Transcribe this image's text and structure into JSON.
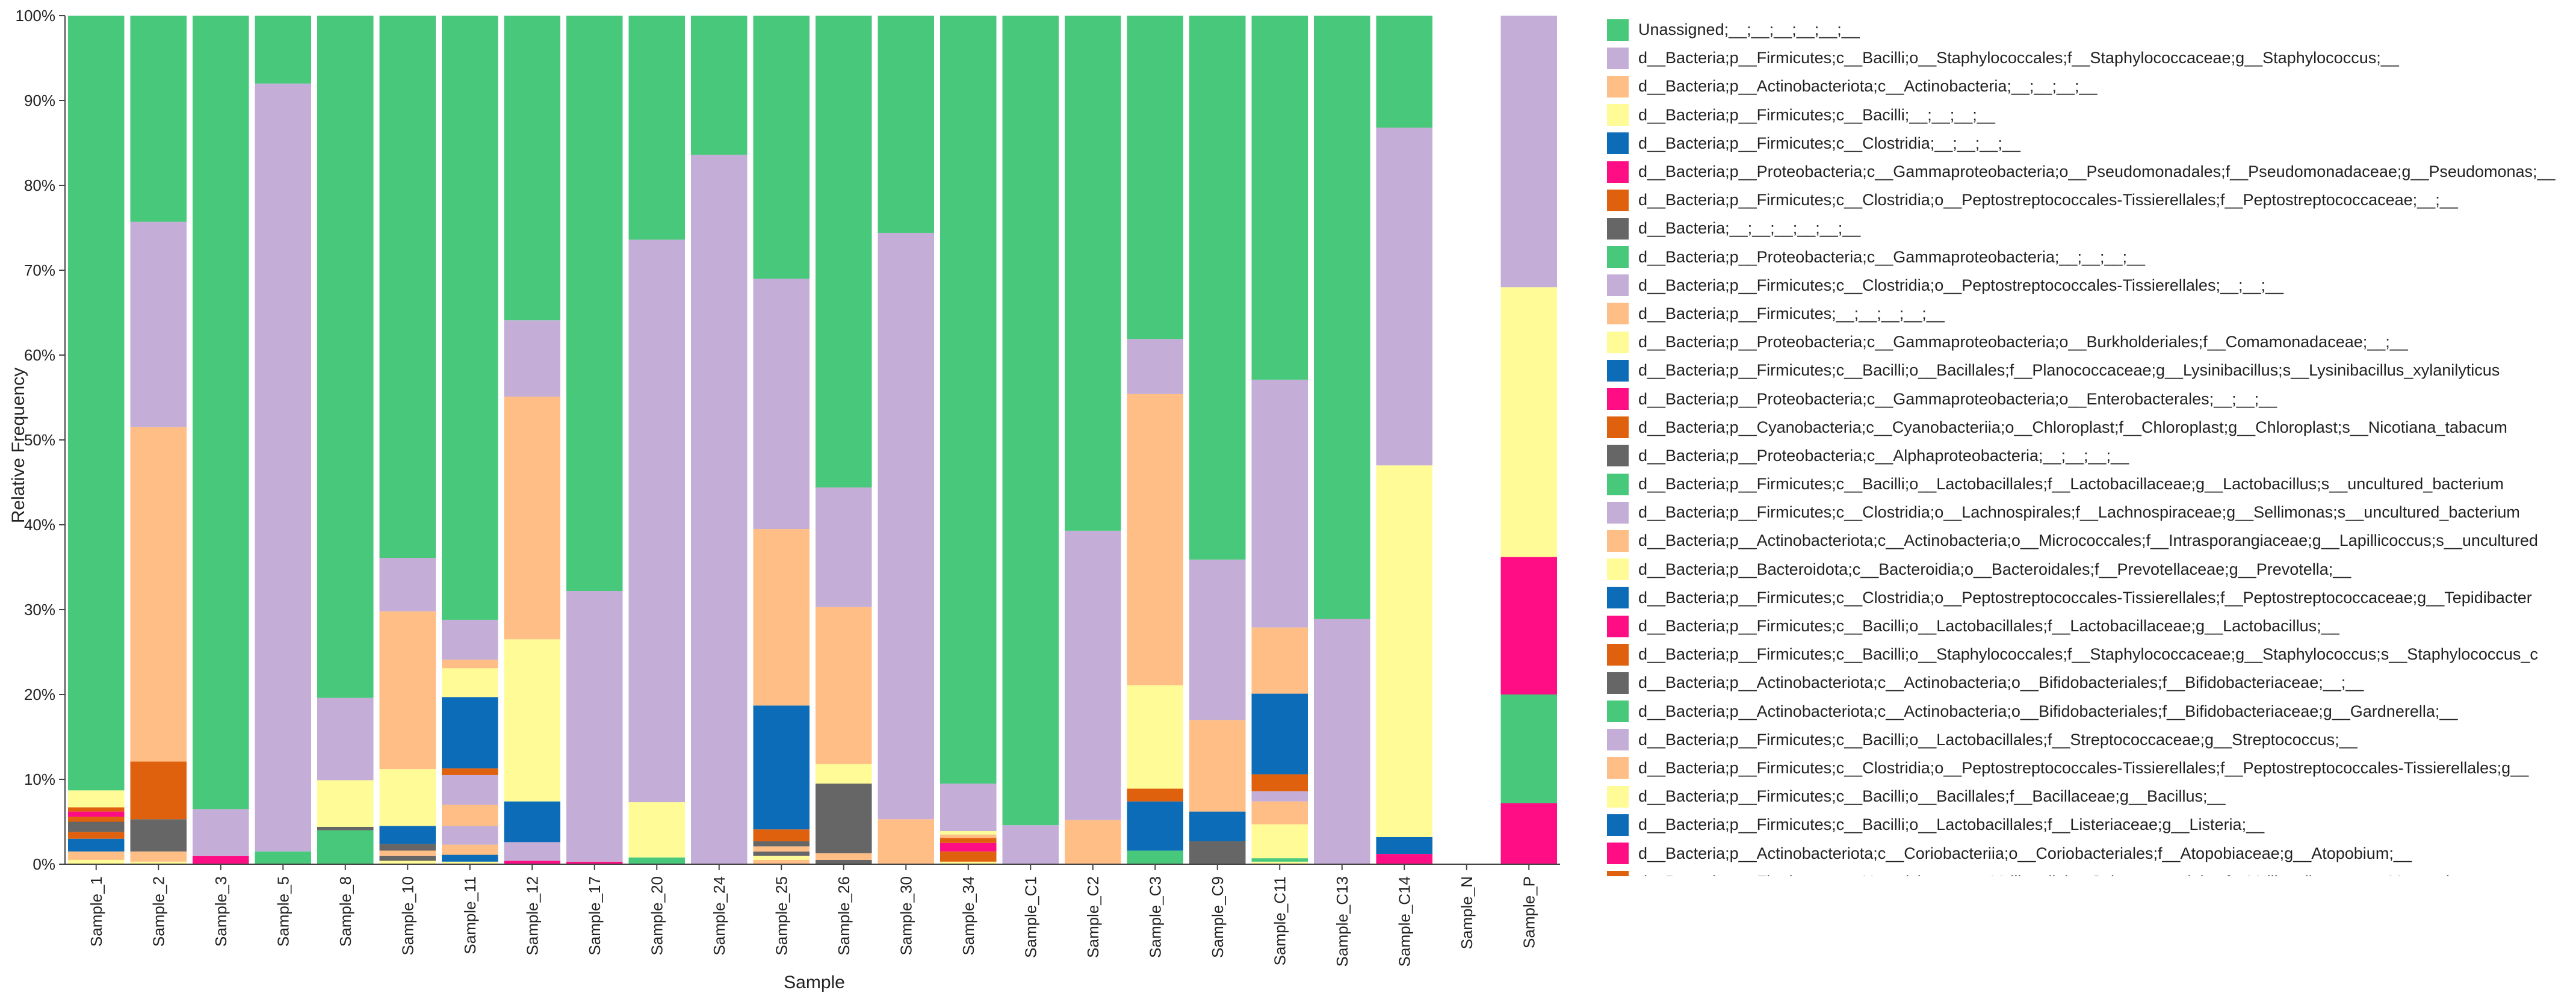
{
  "chart_data": {
    "type": "stacked-bar",
    "xlabel": "Sample",
    "ylabel": "Relative Frequency",
    "ylim": [
      0,
      100
    ],
    "yticks": [
      "0%",
      "10%",
      "20%",
      "30%",
      "40%",
      "50%",
      "60%",
      "70%",
      "80%",
      "90%",
      "100%"
    ],
    "categories": [
      "Sample_1",
      "Sample_2",
      "Sample_3",
      "Sample_5",
      "Sample_8",
      "Sample_10",
      "Sample_11",
      "Sample_12",
      "Sample_17",
      "Sample_20",
      "Sample_24",
      "Sample_25",
      "Sample_26",
      "Sample_30",
      "Sample_34",
      "Sample_C1",
      "Sample_C2",
      "Sample_C3",
      "Sample_C9",
      "Sample_C11",
      "Sample_C13",
      "Sample_C14",
      "Sample_N",
      "Sample_P"
    ],
    "series": [
      {
        "name": "Unassigned;__;__;__;__;__;__",
        "color": "#47c87a"
      },
      {
        "name": "d__Bacteria;p__Firmicutes;c__Bacilli;o__Staphylococcales;f__Staphylococcaceae;g__Staphylococcus;__",
        "color": "#c4aed7"
      },
      {
        "name": "d__Bacteria;p__Actinobacteriota;c__Actinobacteria;__;__;__;__",
        "color": "#ffbe86"
      },
      {
        "name": "d__Bacteria;p__Firmicutes;c__Bacilli;__;__;__;__",
        "color": "#fffb96"
      },
      {
        "name": "d__Bacteria;p__Firmicutes;c__Clostridia;__;__;__;__",
        "color": "#0d6cb8"
      },
      {
        "name": "d__Bacteria;p__Proteobacteria;c__Gammaproteobacteria;o__Pseudomonadales;f__Pseudomonadaceae;g__Pseudomonas;__",
        "color": "#ff0d85"
      },
      {
        "name": "d__Bacteria;p__Firmicutes;c__Clostridia;o__Peptostreptococcales-Tissierellales;f__Peptostreptococcaceae;__;__",
        "color": "#e0610d"
      },
      {
        "name": "d__Bacteria;__;__;__;__;__;__",
        "color": "#666666"
      },
      {
        "name": "d__Bacteria;p__Proteobacteria;c__Gammaproteobacteria;__;__;__;__",
        "color": "#47c87a"
      },
      {
        "name": "d__Bacteria;p__Firmicutes;c__Clostridia;o__Peptostreptococcales-Tissierellales;__;__;__",
        "color": "#c4aed7"
      },
      {
        "name": "d__Bacteria;p__Firmicutes;__;__;__;__;__",
        "color": "#ffbe86"
      },
      {
        "name": "d__Bacteria;p__Proteobacteria;c__Gammaproteobacteria;o__Burkholderiales;f__Comamonadaceae;__;__",
        "color": "#fffb96"
      },
      {
        "name": "d__Bacteria;p__Firmicutes;c__Bacilli;o__Bacillales;f__Planococcaceae;g__Lysinibacillus;s__Lysinibacillus_xylanilyticus",
        "color": "#0d6cb8"
      },
      {
        "name": "d__Bacteria;p__Proteobacteria;c__Gammaproteobacteria;o__Enterobacterales;__;__;__",
        "color": "#ff0d85"
      },
      {
        "name": "d__Bacteria;p__Cyanobacteria;c__Cyanobacteriia;o__Chloroplast;f__Chloroplast;g__Chloroplast;s__Nicotiana_tabacum",
        "color": "#e0610d"
      },
      {
        "name": "d__Bacteria;p__Proteobacteria;c__Alphaproteobacteria;__;__;__;__",
        "color": "#666666"
      },
      {
        "name": "d__Bacteria;p__Firmicutes;c__Bacilli;o__Lactobacillales;f__Lactobacillaceae;g__Lactobacillus;s__uncultured_bacterium",
        "color": "#47c87a"
      },
      {
        "name": "d__Bacteria;p__Firmicutes;c__Clostridia;o__Lachnospirales;f__Lachnospiraceae;g__Sellimonas;s__uncultured_bacterium",
        "color": "#c4aed7"
      },
      {
        "name": "d__Bacteria;p__Actinobacteriota;c__Actinobacteria;o__Micrococcales;f__Intrasporangiaceae;g__Lapillicoccus;s__uncultured",
        "color": "#ffbe86"
      },
      {
        "name": "d__Bacteria;p__Bacteroidota;c__Bacteroidia;o__Bacteroidales;f__Prevotellaceae;g__Prevotella;__",
        "color": "#fffb96"
      },
      {
        "name": "d__Bacteria;p__Firmicutes;c__Clostridia;o__Peptostreptococcales-Tissierellales;f__Peptostreptococcaceae;g__Tepidibacter",
        "color": "#0d6cb8"
      },
      {
        "name": "d__Bacteria;p__Firmicutes;c__Bacilli;o__Lactobacillales;f__Lactobacillaceae;g__Lactobacillus;__",
        "color": "#ff0d85"
      },
      {
        "name": "d__Bacteria;p__Firmicutes;c__Bacilli;o__Staphylococcales;f__Staphylococcaceae;g__Staphylococcus;s__Staphylococcus_c",
        "color": "#e0610d"
      },
      {
        "name": "d__Bacteria;p__Actinobacteriota;c__Actinobacteria;o__Bifidobacteriales;f__Bifidobacteriaceae;__;__",
        "color": "#666666"
      },
      {
        "name": "d__Bacteria;p__Actinobacteriota;c__Actinobacteria;o__Bifidobacteriales;f__Bifidobacteriaceae;g__Gardnerella;__",
        "color": "#47c87a"
      },
      {
        "name": "d__Bacteria;p__Firmicutes;c__Bacilli;o__Lactobacillales;f__Streptococcaceae;g__Streptococcus;__",
        "color": "#c4aed7"
      },
      {
        "name": "d__Bacteria;p__Firmicutes;c__Clostridia;o__Peptostreptococcales-Tissierellales;f__Peptostreptococcales-Tissierellales;g__",
        "color": "#ffbe86"
      },
      {
        "name": "d__Bacteria;p__Firmicutes;c__Bacilli;o__Bacillales;f__Bacillaceae;g__Bacillus;__",
        "color": "#fffb96"
      },
      {
        "name": "d__Bacteria;p__Firmicutes;c__Bacilli;o__Lactobacillales;f__Listeriaceae;g__Listeria;__",
        "color": "#0d6cb8"
      },
      {
        "name": "d__Bacteria;p__Actinobacteriota;c__Coriobacteriia;o__Coriobacteriales;f__Atopobiaceae;g__Atopobium;__",
        "color": "#ff0d85"
      },
      {
        "name": "d__Bacteria;p__Firmicutes;c__Negativicutes;o__Veillonellales-Selenomonadales;f__Veillonellaceae;g__Megasphaera;__",
        "color": "#e0610d"
      }
    ],
    "bars": [
      {
        "sample": "Sample_1",
        "segments": [
          [
            3,
            0.5
          ],
          [
            2,
            1.0
          ],
          [
            4,
            1.5
          ],
          [
            6,
            0.8
          ],
          [
            7,
            1.2
          ],
          [
            22,
            0.6
          ],
          [
            29,
            0.6
          ],
          [
            30,
            0.5
          ],
          [
            3,
            2.0
          ],
          [
            0,
            91.3
          ]
        ]
      },
      {
        "sample": "Sample_2",
        "segments": [
          [
            3,
            0.3
          ],
          [
            2,
            1.2
          ],
          [
            7,
            3.8
          ],
          [
            6,
            6.8
          ],
          [
            2,
            39.4
          ],
          [
            1,
            24.2
          ],
          [
            0,
            24.3
          ]
        ]
      },
      {
        "sample": "Sample_3",
        "segments": [
          [
            5,
            1.0
          ],
          [
            1,
            5.5
          ],
          [
            0,
            93.5
          ]
        ]
      },
      {
        "sample": "Sample_5",
        "segments": [
          [
            0,
            1.5
          ],
          [
            1,
            90.5
          ],
          [
            0,
            8.0
          ]
        ]
      },
      {
        "sample": "Sample_8",
        "segments": [
          [
            0,
            4.0
          ],
          [
            7,
            0.4
          ],
          [
            3,
            5.5
          ],
          [
            1,
            9.7
          ],
          [
            0,
            80.4
          ]
        ]
      },
      {
        "sample": "Sample_10",
        "segments": [
          [
            3,
            0.4
          ],
          [
            7,
            0.6
          ],
          [
            2,
            0.6
          ],
          [
            7,
            0.8
          ],
          [
            4,
            2.1
          ],
          [
            3,
            6.7
          ],
          [
            2,
            18.6
          ],
          [
            1,
            6.3
          ],
          [
            0,
            63.9
          ]
        ]
      },
      {
        "sample": "Sample_11",
        "segments": [
          [
            3,
            0.3
          ],
          [
            4,
            0.8
          ],
          [
            2,
            1.2
          ],
          [
            1,
            2.2
          ],
          [
            2,
            2.5
          ],
          [
            1,
            3.5
          ],
          [
            22,
            0.8
          ],
          [
            4,
            8.4
          ],
          [
            3,
            3.4
          ],
          [
            2,
            1.0
          ],
          [
            1,
            4.7
          ],
          [
            0,
            71.2
          ]
        ]
      },
      {
        "sample": "Sample_12",
        "segments": [
          [
            5,
            0.4
          ],
          [
            1,
            2.2
          ],
          [
            4,
            4.8
          ],
          [
            3,
            19.1
          ],
          [
            2,
            28.6
          ],
          [
            1,
            9.0
          ],
          [
            0,
            35.9
          ]
        ]
      },
      {
        "sample": "Sample_17",
        "segments": [
          [
            5,
            0.3
          ],
          [
            1,
            31.9
          ],
          [
            0,
            67.8
          ]
        ]
      },
      {
        "sample": "Sample_20",
        "segments": [
          [
            0,
            0.8
          ],
          [
            3,
            6.5
          ],
          [
            1,
            66.3
          ],
          [
            0,
            26.4
          ]
        ]
      },
      {
        "sample": "Sample_24",
        "segments": [
          [
            1,
            83.6
          ],
          [
            0,
            16.4
          ]
        ]
      },
      {
        "sample": "Sample_25",
        "segments": [
          [
            2,
            0.5
          ],
          [
            3,
            0.5
          ],
          [
            7,
            0.5
          ],
          [
            2,
            0.6
          ],
          [
            7,
            0.6
          ],
          [
            6,
            1.4
          ],
          [
            4,
            14.6
          ],
          [
            2,
            20.8
          ],
          [
            1,
            29.5
          ],
          [
            0,
            31.0
          ]
        ]
      },
      {
        "sample": "Sample_26",
        "segments": [
          [
            7,
            0.5
          ],
          [
            2,
            0.8
          ],
          [
            7,
            8.2
          ],
          [
            3,
            2.3
          ],
          [
            2,
            18.5
          ],
          [
            1,
            14.1
          ],
          [
            0,
            55.6
          ]
        ]
      },
      {
        "sample": "Sample_30",
        "segments": [
          [
            2,
            5.3
          ],
          [
            1,
            69.1
          ],
          [
            0,
            25.6
          ]
        ]
      },
      {
        "sample": "Sample_34",
        "segments": [
          [
            3,
            0.3
          ],
          [
            6,
            1.2
          ],
          [
            5,
            1.0
          ],
          [
            6,
            0.6
          ],
          [
            2,
            0.4
          ],
          [
            3,
            0.4
          ],
          [
            1,
            5.6
          ],
          [
            0,
            90.5
          ]
        ]
      },
      {
        "sample": "Sample_C1",
        "segments": [
          [
            1,
            4.6
          ],
          [
            0,
            95.4
          ]
        ]
      },
      {
        "sample": "Sample_C2",
        "segments": [
          [
            2,
            5.2
          ],
          [
            1,
            34.1
          ],
          [
            0,
            60.7
          ]
        ]
      },
      {
        "sample": "Sample_C3",
        "segments": [
          [
            0,
            1.6
          ],
          [
            4,
            5.8
          ],
          [
            6,
            1.5
          ],
          [
            3,
            12.2
          ],
          [
            2,
            34.3
          ],
          [
            1,
            6.5
          ],
          [
            0,
            38.1
          ]
        ]
      },
      {
        "sample": "Sample_C9",
        "segments": [
          [
            7,
            2.7
          ],
          [
            4,
            3.5
          ],
          [
            2,
            10.8
          ],
          [
            1,
            18.9
          ],
          [
            0,
            64.1
          ]
        ]
      },
      {
        "sample": "Sample_C11",
        "segments": [
          [
            3,
            0.3
          ],
          [
            0,
            0.4
          ],
          [
            3,
            4.0
          ],
          [
            2,
            2.7
          ],
          [
            1,
            1.2
          ],
          [
            6,
            2.0
          ],
          [
            4,
            9.5
          ],
          [
            2,
            7.8
          ],
          [
            1,
            29.2
          ],
          [
            0,
            42.9
          ]
        ]
      },
      {
        "sample": "Sample_C13",
        "segments": [
          [
            1,
            28.9
          ],
          [
            0,
            71.1
          ]
        ]
      },
      {
        "sample": "Sample_C14",
        "segments": [
          [
            5,
            1.2
          ],
          [
            4,
            2.0
          ],
          [
            3,
            43.8
          ],
          [
            1,
            39.8
          ],
          [
            0,
            13.2
          ]
        ]
      },
      {
        "sample": "Sample_N",
        "segments": []
      },
      {
        "sample": "Sample_P",
        "segments": [
          [
            5,
            7.2
          ],
          [
            0,
            12.8
          ],
          [
            5,
            16.2
          ],
          [
            3,
            31.8
          ],
          [
            1,
            32.0
          ]
        ]
      }
    ]
  }
}
